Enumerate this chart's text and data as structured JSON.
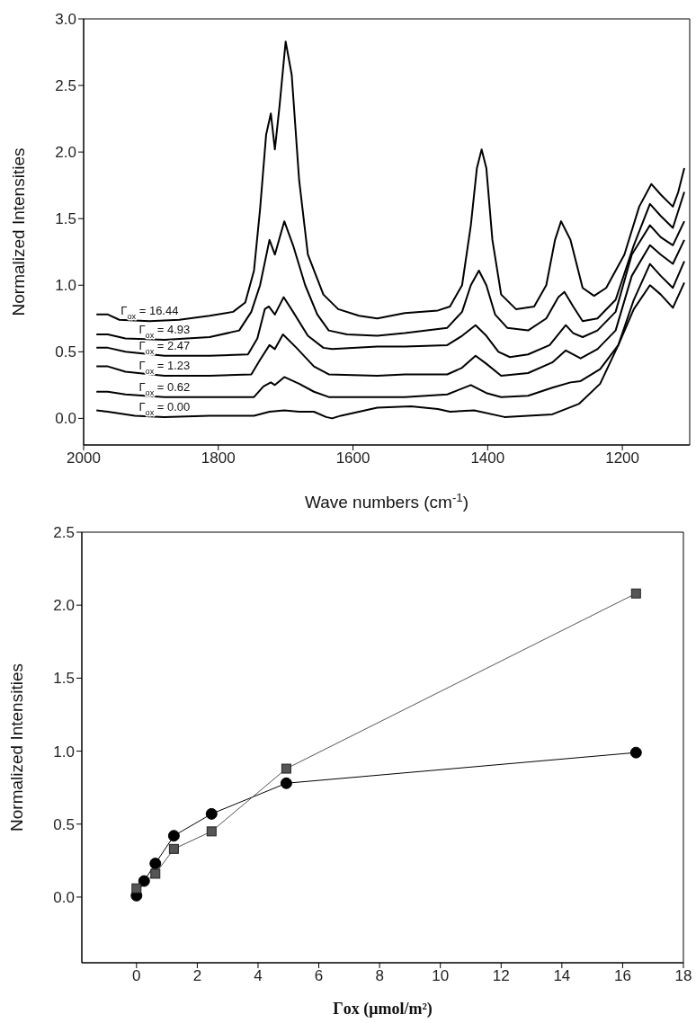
{
  "chart_data": [
    {
      "type": "line",
      "xlabel": "Wave numbers (cm$^{-1}$)",
      "ylabel": "Normalized Intensities",
      "xlim": [
        2000,
        1100
      ],
      "xticks": [
        2000,
        1800,
        1600,
        1400,
        1200
      ],
      "ylim": [
        -0.2,
        3.0
      ],
      "yticks": [
        {
          "value": 0,
          "label": "0.0"
        },
        {
          "value": 0.5,
          "label": "0.5"
        },
        {
          "value": 1,
          "label": "1.0"
        },
        {
          "value": 1.5,
          "label": "1.5"
        },
        {
          "value": 2,
          "label": "2.0"
        },
        {
          "value": 2.5,
          "label": "2.5"
        },
        {
          "value": 3,
          "label": "3.0"
        }
      ],
      "series": [
        {
          "name": "Γ$_{ox}$ = 16.44",
          "color": "#000000",
          "x": [
            1981,
            1964,
            1947,
            1902,
            1858,
            1813,
            1778,
            1760,
            1747,
            1738,
            1729,
            1722,
            1716,
            1709,
            1700,
            1691,
            1680,
            1667,
            1644,
            1622,
            1591,
            1564,
            1523,
            1474,
            1456,
            1438,
            1425,
            1416,
            1409,
            1402,
            1393,
            1380,
            1358,
            1331,
            1313,
            1300,
            1291,
            1277,
            1259,
            1242,
            1224,
            1197,
            1175,
            1157,
            1143,
            1125,
            1117,
            1108
          ],
          "values": [
            0.78,
            0.78,
            0.74,
            0.73,
            0.74,
            0.77,
            0.8,
            0.87,
            1.11,
            1.57,
            2.13,
            2.29,
            2.02,
            2.35,
            2.83,
            2.58,
            1.79,
            1.23,
            0.93,
            0.82,
            0.77,
            0.75,
            0.79,
            0.81,
            0.84,
            1.0,
            1.45,
            1.88,
            2.02,
            1.88,
            1.34,
            0.93,
            0.82,
            0.84,
            1.0,
            1.34,
            1.48,
            1.34,
            0.98,
            0.92,
            0.98,
            1.23,
            1.59,
            1.76,
            1.68,
            1.59,
            1.7,
            1.88
          ]
        },
        {
          "name": "Γ$_{ox}$ = 4.93",
          "color": "#000000",
          "x": [
            1981,
            1964,
            1938,
            1880,
            1813,
            1769,
            1751,
            1738,
            1724,
            1716,
            1702,
            1689,
            1671,
            1653,
            1636,
            1609,
            1564,
            1523,
            1460,
            1438,
            1425,
            1413,
            1402,
            1389,
            1371,
            1340,
            1313,
            1295,
            1286,
            1273,
            1259,
            1237,
            1210,
            1183,
            1159,
            1143,
            1125,
            1108
          ],
          "values": [
            0.63,
            0.63,
            0.6,
            0.59,
            0.61,
            0.66,
            0.8,
            1.0,
            1.34,
            1.23,
            1.48,
            1.3,
            1.0,
            0.78,
            0.66,
            0.63,
            0.62,
            0.64,
            0.68,
            0.8,
            1.0,
            1.11,
            1.0,
            0.78,
            0.68,
            0.66,
            0.75,
            0.91,
            0.95,
            0.84,
            0.73,
            0.75,
            0.89,
            1.3,
            1.61,
            1.52,
            1.43,
            1.7
          ]
        },
        {
          "name": "Γ$_{ox}$ = 2.47",
          "color": "#000000",
          "x": [
            1981,
            1964,
            1938,
            1880,
            1813,
            1756,
            1742,
            1731,
            1725,
            1716,
            1703,
            1689,
            1667,
            1644,
            1631,
            1564,
            1523,
            1460,
            1438,
            1418,
            1402,
            1384,
            1367,
            1340,
            1308,
            1284,
            1273,
            1259,
            1237,
            1210,
            1186,
            1159,
            1143,
            1125,
            1108
          ],
          "values": [
            0.53,
            0.53,
            0.5,
            0.47,
            0.47,
            0.48,
            0.6,
            0.82,
            0.84,
            0.78,
            0.91,
            0.8,
            0.62,
            0.53,
            0.52,
            0.54,
            0.54,
            0.55,
            0.62,
            0.7,
            0.62,
            0.5,
            0.46,
            0.48,
            0.55,
            0.7,
            0.64,
            0.61,
            0.66,
            0.8,
            1.23,
            1.45,
            1.36,
            1.3,
            1.48
          ]
        },
        {
          "name": "Γ$_{ox}$ = 1.23",
          "color": "#000000",
          "x": [
            1981,
            1964,
            1938,
            1880,
            1813,
            1751,
            1738,
            1724,
            1716,
            1704,
            1684,
            1658,
            1636,
            1564,
            1523,
            1460,
            1438,
            1418,
            1402,
            1380,
            1340,
            1304,
            1284,
            1262,
            1237,
            1210,
            1186,
            1159,
            1143,
            1125,
            1108
          ],
          "values": [
            0.39,
            0.39,
            0.35,
            0.32,
            0.32,
            0.33,
            0.44,
            0.55,
            0.52,
            0.63,
            0.53,
            0.39,
            0.33,
            0.32,
            0.33,
            0.33,
            0.38,
            0.47,
            0.41,
            0.32,
            0.34,
            0.42,
            0.51,
            0.45,
            0.52,
            0.66,
            1.07,
            1.3,
            1.23,
            1.16,
            1.34
          ]
        },
        {
          "name": "Γ$_{ox}$ = 0.62",
          "color": "#000000",
          "x": [
            1981,
            1964,
            1938,
            1880,
            1813,
            1747,
            1733,
            1722,
            1716,
            1702,
            1680,
            1658,
            1636,
            1564,
            1523,
            1460,
            1425,
            1402,
            1380,
            1340,
            1304,
            1277,
            1262,
            1233,
            1206,
            1183,
            1159,
            1143,
            1125,
            1108
          ],
          "values": [
            0.2,
            0.2,
            0.18,
            0.16,
            0.16,
            0.16,
            0.24,
            0.27,
            0.25,
            0.31,
            0.26,
            0.2,
            0.16,
            0.16,
            0.16,
            0.18,
            0.25,
            0.19,
            0.16,
            0.17,
            0.23,
            0.27,
            0.28,
            0.37,
            0.55,
            0.89,
            1.16,
            1.07,
            0.98,
            1.18
          ]
        },
        {
          "name": "Γ$_{ox}$ = 0.00",
          "color": "#000000",
          "x": [
            1981,
            1964,
            1924,
            1880,
            1813,
            1747,
            1724,
            1702,
            1680,
            1658,
            1640,
            1631,
            1618,
            1564,
            1514,
            1474,
            1456,
            1420,
            1375,
            1340,
            1304,
            1264,
            1233,
            1206,
            1183,
            1159,
            1143,
            1125,
            1108
          ],
          "values": [
            0.06,
            0.05,
            0.02,
            0.01,
            0.02,
            0.02,
            0.05,
            0.06,
            0.05,
            0.05,
            0.01,
            0.0,
            0.02,
            0.08,
            0.09,
            0.07,
            0.05,
            0.06,
            0.01,
            0.02,
            0.03,
            0.11,
            0.26,
            0.55,
            0.82,
            1.0,
            0.93,
            0.83,
            1.02
          ]
        }
      ]
    },
    {
      "type": "line",
      "xlabel": "Γox (μmol/m²)",
      "ylabel": "Normalized Intensities",
      "xlim": [
        -1.8,
        18
      ],
      "xticks": [
        0,
        2,
        4,
        6,
        8,
        10,
        12,
        14,
        16,
        18
      ],
      "ylim": [
        -0.45,
        2.5
      ],
      "yticks": [
        {
          "value": 0,
          "label": "0.0"
        },
        {
          "value": 0.5,
          "label": "0.5"
        },
        {
          "value": 1,
          "label": "1.0"
        },
        {
          "value": 1.5,
          "label": "1.5"
        },
        {
          "value": 2,
          "label": "2.0"
        },
        {
          "value": 2.5,
          "label": "2.5"
        }
      ],
      "series": [
        {
          "color": "#000000",
          "marker": "circle",
          "x": [
            0,
            0.25,
            0.62,
            1.23,
            2.47,
            4.93,
            16.44
          ],
          "values": [
            0.01,
            0.11,
            0.23,
            0.42,
            0.57,
            0.78,
            0.99
          ]
        },
        {
          "color": "#555555",
          "marker": "square",
          "x": [
            0,
            0.62,
            1.23,
            2.47,
            4.93,
            16.44
          ],
          "values": [
            0.06,
            0.16,
            0.33,
            0.45,
            0.88,
            2.08
          ]
        }
      ]
    }
  ]
}
